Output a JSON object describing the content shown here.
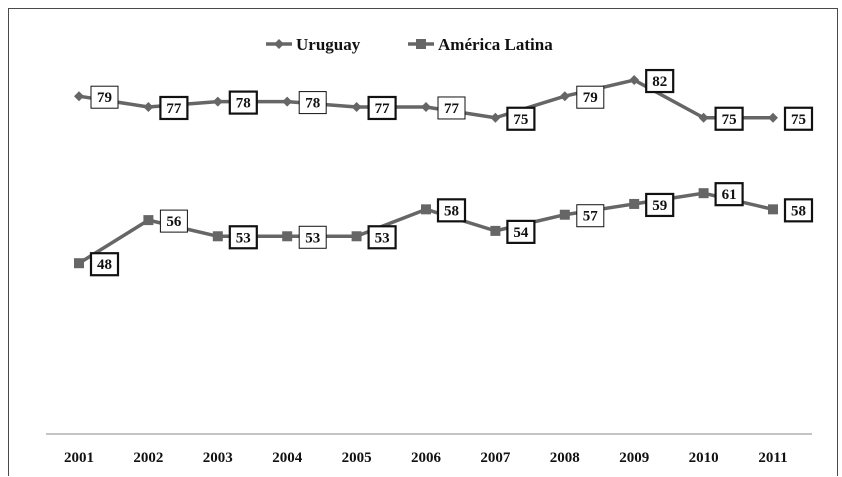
{
  "chart_data": {
    "type": "line",
    "title": "",
    "xlabel": "",
    "ylabel": "",
    "categories": [
      "2001",
      "2002",
      "2003",
      "2004",
      "2005",
      "2006",
      "2007",
      "2008",
      "2009",
      "2010",
      "2011"
    ],
    "series": [
      {
        "name": "Uruguay",
        "marker": "diamond",
        "color": "#666666",
        "values": [
          79,
          77,
          78,
          78,
          77,
          77,
          75,
          79,
          82,
          75,
          75
        ],
        "label_border": [
          "thin",
          "thick",
          "thick",
          "thin",
          "thick",
          "thin",
          "thick",
          "thin",
          "thick",
          "thick",
          "thick"
        ]
      },
      {
        "name": "América Latina",
        "marker": "square",
        "color": "#666666",
        "values": [
          48,
          56,
          53,
          53,
          53,
          58,
          54,
          57,
          59,
          61,
          58
        ],
        "label_border": [
          "thick",
          "thin",
          "thick",
          "thin",
          "thick",
          "thick",
          "thick",
          "thin",
          "thick",
          "thick",
          "thick"
        ]
      }
    ],
    "ylim": [
      15,
      95
    ],
    "grid": false,
    "legend": "top-center",
    "data_labels": true
  }
}
